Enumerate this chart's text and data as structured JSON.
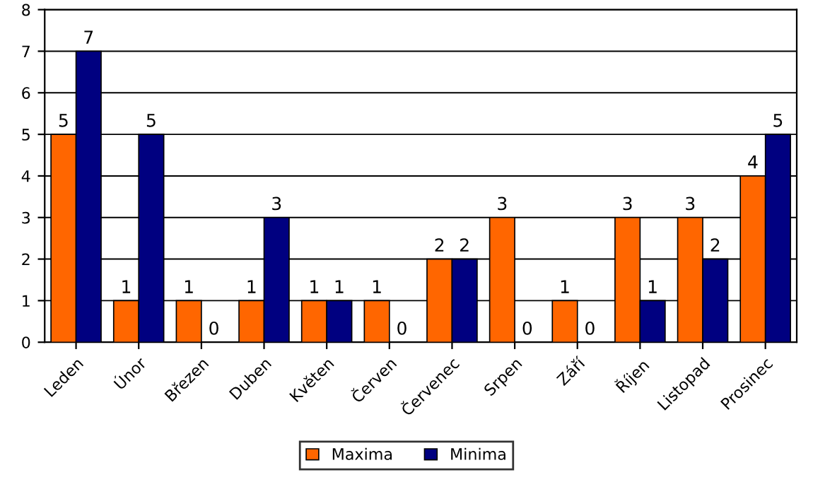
{
  "chart_data": {
    "type": "bar",
    "categories": [
      "Leden",
      "Únor",
      "Březen",
      "Duben",
      "Květen",
      "Červen",
      "Červenec",
      "Srpen",
      "Září",
      "Říjen",
      "Listopad",
      "Prosinec"
    ],
    "series": [
      {
        "name": "Maxima",
        "color": "#ff6600",
        "values": [
          5,
          1,
          1,
          1,
          1,
          1,
          2,
          3,
          1,
          3,
          3,
          4
        ]
      },
      {
        "name": "Minima",
        "color": "#000080",
        "values": [
          7,
          5,
          0,
          3,
          1,
          0,
          2,
          0,
          0,
          1,
          2,
          5
        ]
      }
    ],
    "ylim": [
      0,
      8
    ],
    "yticks": [
      0,
      1,
      2,
      3,
      4,
      5,
      6,
      7,
      8
    ],
    "grid": "y",
    "legend": "bottom",
    "data_labels": true
  }
}
